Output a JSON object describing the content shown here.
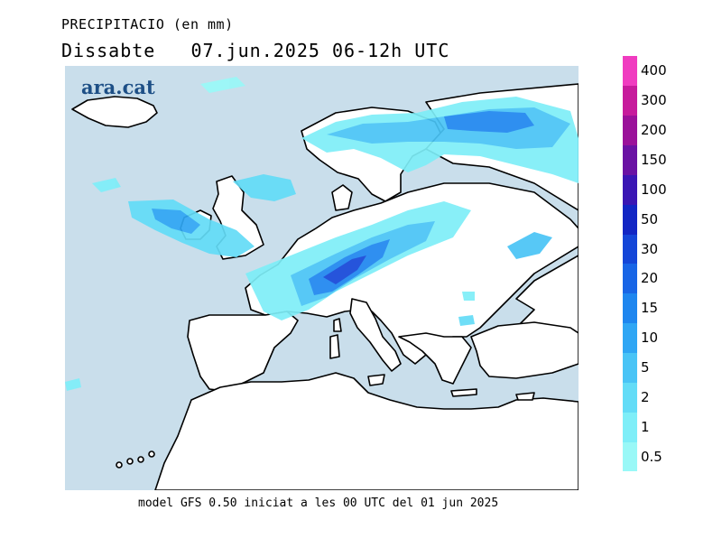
{
  "header": {
    "title": "PRECIPITACIO (en mm)",
    "subtitle": "Dissabte   07.jun.2025 06-12h UTC"
  },
  "brand": {
    "logo": "ara.cat",
    "color": "#1d4f86"
  },
  "footer": {
    "text": "model GFS 0.50 iniciat a les 00 UTC del 01 jun 2025"
  },
  "map": {
    "sea_color": "#c9deeb",
    "land_color": "#ffffff",
    "coast_color": "#000000"
  },
  "legend": {
    "units": "mm",
    "levels": [
      {
        "label": "0.5",
        "color": "#99f8f7"
      },
      {
        "label": "1",
        "color": "#7eeef8"
      },
      {
        "label": "2",
        "color": "#63dcf7"
      },
      {
        "label": "5",
        "color": "#49c4f6"
      },
      {
        "label": "10",
        "color": "#2fa6f4"
      },
      {
        "label": "15",
        "color": "#1e86ef"
      },
      {
        "label": "20",
        "color": "#1865e6"
      },
      {
        "label": "30",
        "color": "#1446d8"
      },
      {
        "label": "50",
        "color": "#1226c4"
      },
      {
        "label": "100",
        "color": "#3a16b4"
      },
      {
        "label": "150",
        "color": "#6a12a4"
      },
      {
        "label": "200",
        "color": "#9b119a"
      },
      {
        "label": "300",
        "color": "#c71b9c"
      },
      {
        "label": "400",
        "color": "#f03cc0"
      }
    ]
  }
}
